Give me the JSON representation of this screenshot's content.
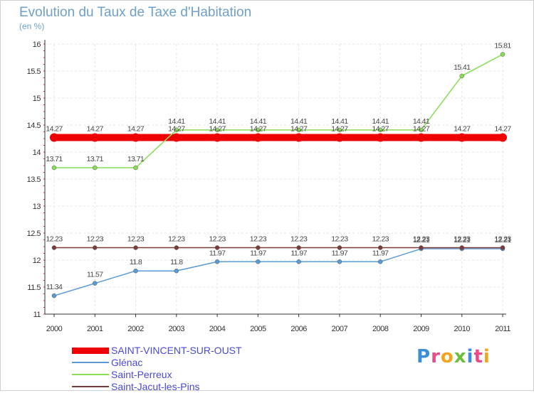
{
  "chart_data": {
    "type": "line",
    "title": "Evolution du Taux de Taxe d'Habitation",
    "unit_label": "(en %)",
    "x": [
      "2000",
      "2001",
      "2002",
      "2003",
      "2004",
      "2005",
      "2006",
      "2007",
      "2008",
      "2009",
      "2010",
      "2011"
    ],
    "ylim": [
      11,
      16
    ],
    "y_ticks": [
      "11",
      "11.5",
      "12",
      "12.5",
      "13",
      "13.5",
      "14",
      "14.5",
      "15",
      "15.5",
      "16"
    ],
    "grid": true,
    "legend_position": "bottom-left",
    "series": [
      {
        "name": "SAINT-VINCENT-SUR-OUST",
        "color": "#ee0000",
        "values": [
          14.27,
          14.27,
          14.27,
          14.27,
          14.27,
          14.27,
          14.27,
          14.27,
          14.27,
          14.27,
          14.27,
          14.27
        ],
        "labels": [
          "14.27",
          "14.27",
          "14.27",
          "14.27",
          "14.27",
          "14.27",
          "14.27",
          "14.27",
          "14.27",
          "14.27",
          "14.27",
          "14.27"
        ]
      },
      {
        "name": "Glénac",
        "color": "#5b9bd5",
        "values": [
          11.34,
          11.57,
          11.8,
          11.8,
          11.97,
          11.97,
          11.97,
          11.97,
          11.97,
          12.21,
          12.21,
          12.21
        ],
        "labels": [
          "11.34",
          "11.57",
          "11.8",
          "11.8",
          "11.97",
          "11.97",
          "11.97",
          "11.97",
          "11.97",
          "12.21",
          "12.21",
          "12.21"
        ]
      },
      {
        "name": "Saint-Perreux",
        "color": "#88dd55",
        "values": [
          13.71,
          13.71,
          13.71,
          14.41,
          14.41,
          14.41,
          14.41,
          14.41,
          14.41,
          14.41,
          15.41,
          15.81
        ],
        "labels": [
          "13.71",
          "13.71",
          "13.71",
          "14.41",
          "14.41",
          "14.41",
          "14.41",
          "14.41",
          "14.41",
          "14.41",
          "15.41",
          "15.81"
        ]
      },
      {
        "name": "Saint-Jacut-les-Pins",
        "color": "#7a3b3b",
        "values": [
          12.23,
          12.23,
          12.23,
          12.23,
          12.23,
          12.23,
          12.23,
          12.23,
          12.23,
          12.23,
          12.23,
          12.23
        ],
        "labels": [
          "12.23",
          "12.23",
          "12.23",
          "12.23",
          "12.23",
          "12.23",
          "12.23",
          "12.23",
          "12.23",
          "12.23",
          "12.23",
          "12.23"
        ]
      }
    ]
  },
  "brand": {
    "letters": [
      "P",
      "r",
      "o",
      "x",
      "i",
      "t",
      "i"
    ],
    "colors": [
      "#3b8fd8",
      "#e84a8a",
      "#f2a41c",
      "#6cbf3a",
      "#3b8fd8",
      "#e84a8a",
      "#f2a41c"
    ]
  }
}
